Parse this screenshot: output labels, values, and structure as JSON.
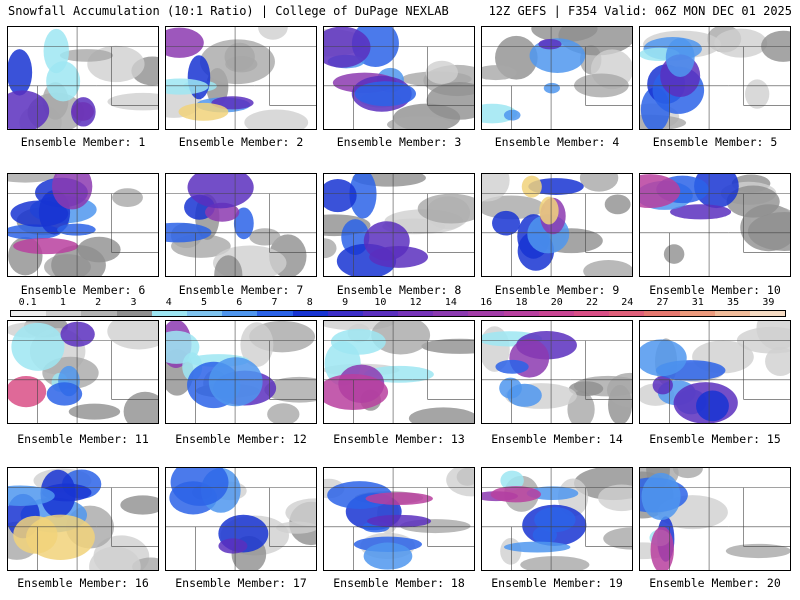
{
  "header": {
    "left": "Snowfall Accumulation (10:1 Ratio) | College of DuPage NEXLAB",
    "right": "12Z GEFS | F354 Valid: 06Z MON DEC 01 2025"
  },
  "colorbar": {
    "labels": [
      "0.1",
      "1",
      "2",
      "3",
      "4",
      "5",
      "6",
      "7",
      "8",
      "9",
      "10",
      "12",
      "14",
      "16",
      "18",
      "20",
      "22",
      "24",
      "27",
      "31",
      "35",
      "39"
    ],
    "colors": [
      "#ececec",
      "#cfcfcf",
      "#b2b2b2",
      "#8f8f8f",
      "#9de6f2",
      "#7fc4f0",
      "#4f96ee",
      "#2b63e8",
      "#1734d2",
      "#3c2ec8",
      "#5a2fbe",
      "#7633b8",
      "#8c3ab0",
      "#a33da8",
      "#b8409f",
      "#c94593",
      "#d94f86",
      "#e0607a",
      "#e6786f",
      "#ec9a7c",
      "#f1bc9a",
      "#f6dcc4"
    ]
  },
  "panels": [
    {
      "label": "Ensemble Member: 1"
    },
    {
      "label": "Ensemble Member: 2"
    },
    {
      "label": "Ensemble Member: 3"
    },
    {
      "label": "Ensemble Member: 4"
    },
    {
      "label": "Ensemble Member: 5"
    },
    {
      "label": "Ensemble Member: 6"
    },
    {
      "label": "Ensemble Member: 7"
    },
    {
      "label": "Ensemble Member: 8"
    },
    {
      "label": "Ensemble Member: 9"
    },
    {
      "label": "Ensemble Member: 10"
    },
    {
      "label": "Ensemble Member: 11"
    },
    {
      "label": "Ensemble Member: 12"
    },
    {
      "label": "Ensemble Member: 13"
    },
    {
      "label": "Ensemble Member: 14"
    },
    {
      "label": "Ensemble Member: 15"
    },
    {
      "label": "Ensemble Member: 16"
    },
    {
      "label": "Ensemble Member: 17"
    },
    {
      "label": "Ensemble Member: 18"
    },
    {
      "label": "Ensemble Member: 19"
    },
    {
      "label": "Ensemble Member: 20"
    }
  ]
}
